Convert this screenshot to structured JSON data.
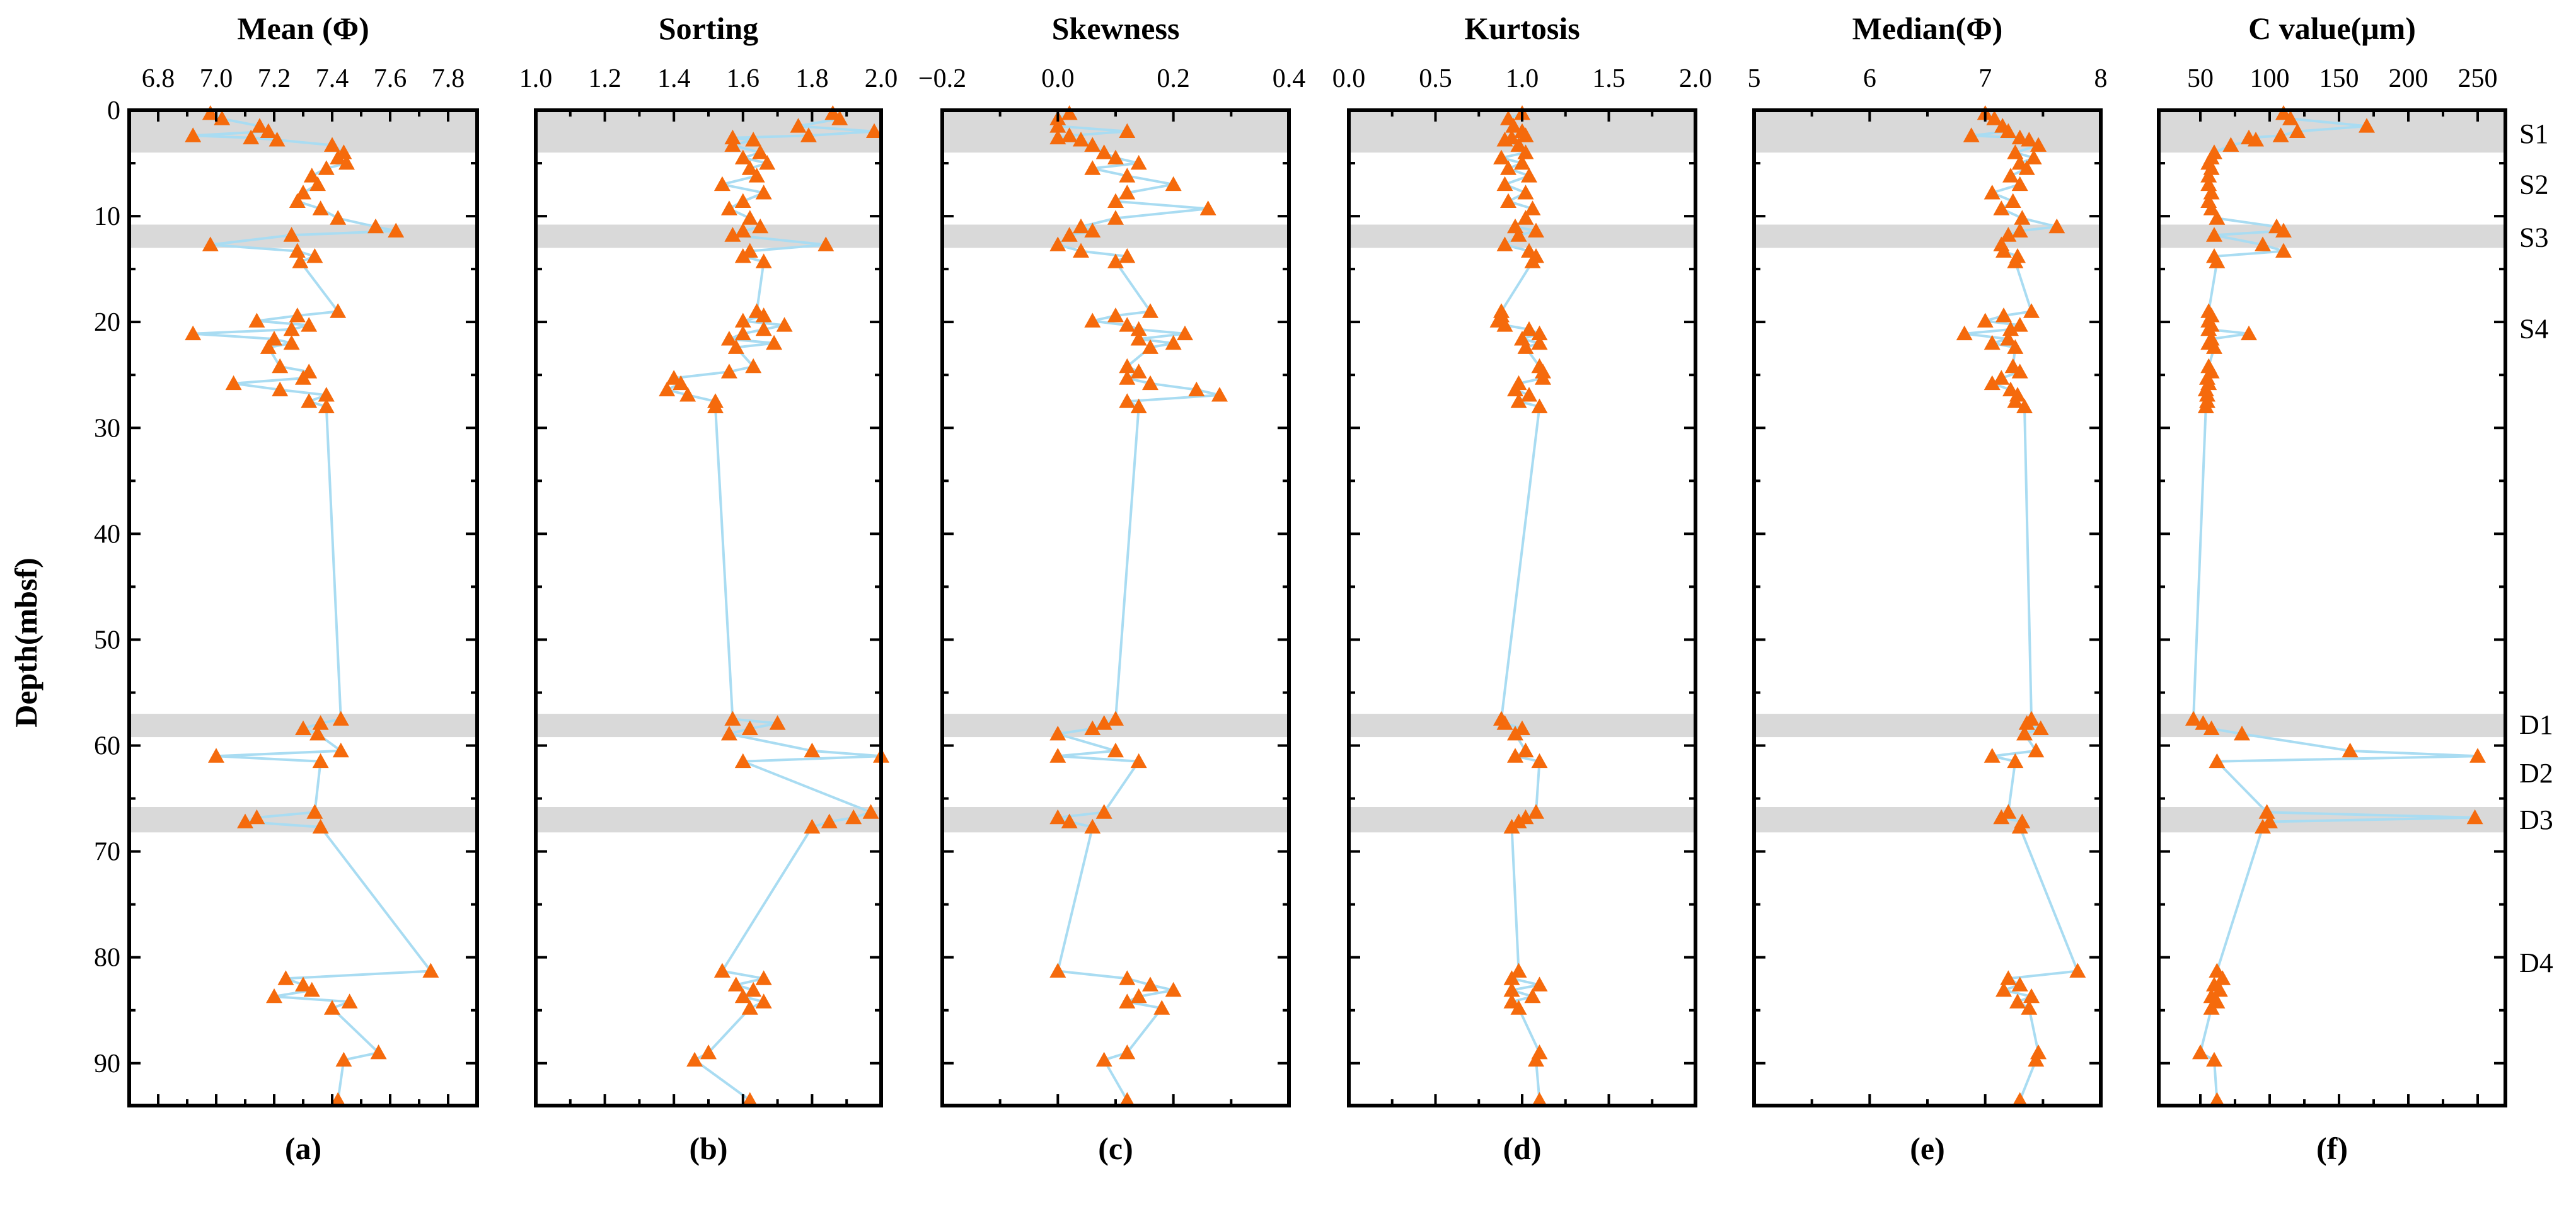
{
  "figure": {
    "y_axis_label": "Depth(mbsf)",
    "y_ticks": [
      0,
      10,
      20,
      30,
      40,
      50,
      60,
      70,
      80,
      90
    ],
    "ylim": [
      0,
      94
    ],
    "zones": [
      {
        "name": "S1",
        "label_depth": 2.2,
        "shade": [
          0,
          4
        ]
      },
      {
        "name": "S2",
        "label_depth": 7,
        "shade": null
      },
      {
        "name": "S3",
        "label_depth": 12,
        "shade": [
          10.8,
          13
        ]
      },
      {
        "name": "S4",
        "label_depth": 20.6,
        "shade": null
      },
      {
        "name": "D1",
        "label_depth": 58,
        "shade": [
          57,
          59.2
        ]
      },
      {
        "name": "D2",
        "label_depth": 62.6,
        "shade": null
      },
      {
        "name": "D3",
        "label_depth": 67,
        "shade": [
          65.8,
          68.2
        ]
      },
      {
        "name": "D4",
        "label_depth": 80.5,
        "shade": null
      }
    ],
    "colors": {
      "marker": "#f56a0c",
      "line": "#a9dcf2",
      "shade": "#d9d9d9"
    }
  },
  "chart_data": [
    {
      "type": "scatter",
      "panel": "(a)",
      "title": "Mean (Φ)",
      "xlim": [
        6.7,
        7.9
      ],
      "x_ticks": [
        "6.8",
        "7.0",
        "7.2",
        "7.4",
        "7.6",
        "7.8"
      ],
      "depth": [
        0.3,
        0.8,
        1.5,
        2.0,
        2.4,
        2.6,
        2.8,
        3.3,
        4.0,
        4.5,
        5.0,
        5.5,
        6.2,
        7.0,
        7.8,
        8.6,
        9.3,
        10.2,
        11.0,
        11.4,
        11.8,
        12.7,
        13.3,
        13.8,
        14.3,
        19.0,
        19.4,
        19.9,
        20.3,
        20.7,
        21.1,
        21.6,
        22.0,
        22.4,
        24.2,
        24.7,
        25.3,
        25.8,
        26.4,
        26.9,
        27.5,
        28.0,
        57.5,
        57.9,
        58.4,
        58.9,
        60.5,
        61.0,
        61.5,
        66.3,
        66.8,
        67.2,
        67.7,
        81.3,
        82.0,
        82.6,
        83.1,
        83.7,
        84.2,
        84.8,
        89.0,
        89.7,
        93.5
      ],
      "values": [
        6.98,
        7.02,
        7.15,
        7.18,
        6.92,
        7.12,
        7.21,
        7.4,
        7.44,
        7.42,
        7.45,
        7.38,
        7.33,
        7.35,
        7.3,
        7.28,
        7.36,
        7.42,
        7.55,
        7.62,
        7.26,
        6.98,
        7.28,
        7.34,
        7.29,
        7.42,
        7.28,
        7.14,
        7.32,
        7.26,
        6.92,
        7.2,
        7.26,
        7.18,
        7.22,
        7.32,
        7.3,
        7.06,
        7.22,
        7.38,
        7.32,
        7.38,
        7.43,
        7.36,
        7.3,
        7.35,
        7.43,
        7.0,
        7.36,
        7.34,
        7.14,
        7.1,
        7.36,
        7.74,
        7.24,
        7.3,
        7.33,
        7.2,
        7.46,
        7.4,
        7.56,
        7.44,
        7.42
      ]
    },
    {
      "type": "scatter",
      "panel": "(b)",
      "title": "Sorting",
      "xlim": [
        1.0,
        2.0
      ],
      "x_ticks": [
        "1.0",
        "1.2",
        "1.4",
        "1.6",
        "1.8",
        "2.0"
      ],
      "depth": [
        0.3,
        0.8,
        1.5,
        2.0,
        2.4,
        2.6,
        2.8,
        3.3,
        4.0,
        4.5,
        5.0,
        5.5,
        6.2,
        7.0,
        7.8,
        8.6,
        9.3,
        10.2,
        11.0,
        11.4,
        11.8,
        12.7,
        13.3,
        13.8,
        14.3,
        19.0,
        19.4,
        19.9,
        20.3,
        20.7,
        21.1,
        21.6,
        22.0,
        22.4,
        24.2,
        24.7,
        25.3,
        25.8,
        26.4,
        26.9,
        27.5,
        28.0,
        57.5,
        57.9,
        58.4,
        58.9,
        60.5,
        61.0,
        61.5,
        66.3,
        66.8,
        67.2,
        67.7,
        81.3,
        82.0,
        82.6,
        83.1,
        83.7,
        84.2,
        84.8,
        89.0,
        89.7,
        93.5
      ],
      "values": [
        1.86,
        1.88,
        1.76,
        1.98,
        1.79,
        1.57,
        1.63,
        1.57,
        1.65,
        1.6,
        1.67,
        1.62,
        1.64,
        1.54,
        1.66,
        1.6,
        1.56,
        1.62,
        1.65,
        1.6,
        1.57,
        1.84,
        1.62,
        1.6,
        1.66,
        1.64,
        1.66,
        1.6,
        1.72,
        1.66,
        1.6,
        1.56,
        1.69,
        1.58,
        1.63,
        1.56,
        1.4,
        1.42,
        1.38,
        1.44,
        1.52,
        1.52,
        1.57,
        1.7,
        1.62,
        1.56,
        1.8,
        2.0,
        1.6,
        1.97,
        1.92,
        1.85,
        1.8,
        1.54,
        1.66,
        1.58,
        1.63,
        1.6,
        1.66,
        1.62,
        1.5,
        1.46,
        1.62
      ]
    },
    {
      "type": "scatter",
      "panel": "(c)",
      "title": "Skewness",
      "xlim": [
        -0.2,
        0.4
      ],
      "x_ticks": [
        "−0.2",
        "0.0",
        "0.2",
        "0.4"
      ],
      "depth": [
        0.3,
        0.8,
        1.5,
        2.0,
        2.4,
        2.6,
        2.8,
        3.3,
        4.0,
        4.5,
        5.0,
        5.5,
        6.2,
        7.0,
        7.8,
        8.6,
        9.3,
        10.2,
        11.0,
        11.4,
        11.8,
        12.7,
        13.3,
        13.8,
        14.3,
        19.0,
        19.4,
        19.9,
        20.3,
        20.7,
        21.1,
        21.6,
        22.0,
        22.4,
        24.2,
        24.7,
        25.3,
        25.8,
        26.4,
        26.9,
        27.5,
        28.0,
        57.5,
        57.9,
        58.4,
        58.9,
        60.5,
        61.0,
        61.5,
        66.3,
        66.8,
        67.2,
        67.7,
        81.3,
        82.0,
        82.6,
        83.1,
        83.7,
        84.2,
        84.8,
        89.0,
        89.7,
        93.5
      ],
      "values": [
        0.02,
        0.0,
        0.0,
        0.12,
        0.02,
        0.0,
        0.04,
        0.06,
        0.08,
        0.1,
        0.14,
        0.06,
        0.12,
        0.2,
        0.12,
        0.1,
        0.26,
        0.1,
        0.04,
        0.06,
        0.02,
        0.0,
        0.04,
        0.12,
        0.1,
        0.16,
        0.1,
        0.06,
        0.12,
        0.14,
        0.22,
        0.14,
        0.2,
        0.16,
        0.12,
        0.14,
        0.12,
        0.16,
        0.24,
        0.28,
        0.12,
        0.14,
        0.1,
        0.08,
        0.06,
        0.0,
        0.1,
        0.0,
        0.14,
        0.08,
        0.0,
        0.02,
        0.06,
        0.0,
        0.12,
        0.16,
        0.2,
        0.14,
        0.12,
        0.18,
        0.12,
        0.08,
        0.12
      ]
    },
    {
      "type": "scatter",
      "panel": "(d)",
      "title": "Kurtosis",
      "xlim": [
        0.0,
        2.0
      ],
      "x_ticks": [
        "0.0",
        "0.5",
        "1.0",
        "1.5",
        "2.0"
      ],
      "depth": [
        0.3,
        0.8,
        1.5,
        2.0,
        2.4,
        2.6,
        2.8,
        3.3,
        4.0,
        4.5,
        5.0,
        5.5,
        6.2,
        7.0,
        7.8,
        8.6,
        9.3,
        10.2,
        11.0,
        11.4,
        11.8,
        12.7,
        13.3,
        13.8,
        14.3,
        19.0,
        19.4,
        19.9,
        20.3,
        20.7,
        21.1,
        21.6,
        22.0,
        22.4,
        24.2,
        24.7,
        25.3,
        25.8,
        26.4,
        26.9,
        27.5,
        28.0,
        57.5,
        57.9,
        58.4,
        58.9,
        60.5,
        61.0,
        61.5,
        66.3,
        66.8,
        67.2,
        67.7,
        81.3,
        82.0,
        82.6,
        83.1,
        83.7,
        84.2,
        84.8,
        89.0,
        89.7,
        93.5
      ],
      "values": [
        1.0,
        0.92,
        0.95,
        1.0,
        1.02,
        0.94,
        0.9,
        0.98,
        1.02,
        0.88,
        1.0,
        0.92,
        1.04,
        0.9,
        1.02,
        0.92,
        1.06,
        1.02,
        0.96,
        1.08,
        0.98,
        0.9,
        1.04,
        1.08,
        1.06,
        0.88,
        0.88,
        0.86,
        0.9,
        1.04,
        1.1,
        1.0,
        1.1,
        1.02,
        1.1,
        1.12,
        1.12,
        0.98,
        0.96,
        1.04,
        0.98,
        1.1,
        0.88,
        0.9,
        1.0,
        0.96,
        1.02,
        0.96,
        1.1,
        1.08,
        1.02,
        0.98,
        0.94,
        0.98,
        0.94,
        1.1,
        0.94,
        1.06,
        0.94,
        0.98,
        1.1,
        1.08,
        1.1
      ]
    },
    {
      "type": "scatter",
      "panel": "(e)",
      "title": "Median(Φ)",
      "xlim": [
        5,
        8
      ],
      "x_ticks": [
        "5",
        "6",
        "7",
        "8"
      ],
      "depth": [
        0.3,
        0.8,
        1.5,
        2.0,
        2.4,
        2.6,
        2.8,
        3.3,
        4.0,
        4.5,
        5.0,
        5.5,
        6.2,
        7.0,
        7.8,
        8.6,
        9.3,
        10.2,
        11.0,
        11.4,
        11.8,
        12.7,
        13.3,
        13.8,
        14.3,
        19.0,
        19.4,
        19.9,
        20.3,
        20.7,
        21.1,
        21.6,
        22.0,
        22.4,
        24.2,
        24.7,
        25.3,
        25.8,
        26.4,
        26.9,
        27.5,
        28.0,
        57.5,
        57.9,
        58.4,
        58.9,
        60.5,
        61.0,
        61.5,
        66.3,
        66.8,
        67.2,
        67.7,
        81.3,
        82.0,
        82.6,
        83.1,
        83.7,
        84.2,
        84.8,
        89.0,
        89.7,
        93.5
      ],
      "values": [
        7.0,
        7.08,
        7.15,
        7.2,
        6.88,
        7.3,
        7.38,
        7.46,
        7.26,
        7.42,
        7.3,
        7.36,
        7.22,
        7.3,
        7.06,
        7.24,
        7.14,
        7.32,
        7.62,
        7.3,
        7.2,
        7.14,
        7.16,
        7.28,
        7.26,
        7.4,
        7.16,
        7.0,
        7.3,
        7.22,
        6.82,
        7.2,
        7.06,
        7.26,
        7.24,
        7.3,
        7.14,
        7.06,
        7.22,
        7.28,
        7.26,
        7.34,
        7.4,
        7.36,
        7.48,
        7.34,
        7.44,
        7.06,
        7.26,
        7.2,
        7.14,
        7.32,
        7.3,
        7.8,
        7.2,
        7.3,
        7.16,
        7.4,
        7.28,
        7.38,
        7.46,
        7.44,
        7.3
      ]
    },
    {
      "type": "scatter",
      "panel": "(f)",
      "title": "C value(μm)",
      "xlim": [
        20,
        270
      ],
      "x_ticks": [
        "50",
        "100",
        "150",
        "200",
        "250"
      ],
      "depth": [
        0.3,
        0.8,
        1.5,
        2.0,
        2.4,
        2.6,
        2.8,
        3.3,
        4.0,
        4.5,
        5.0,
        5.5,
        6.2,
        7.0,
        7.8,
        8.6,
        9.3,
        10.2,
        11.0,
        11.4,
        11.8,
        12.7,
        13.3,
        13.8,
        14.3,
        19.0,
        19.4,
        19.9,
        20.3,
        20.7,
        21.1,
        21.6,
        22.0,
        22.4,
        24.2,
        24.7,
        25.3,
        25.8,
        26.4,
        26.9,
        27.5,
        28.0,
        57.5,
        57.9,
        58.4,
        58.9,
        60.5,
        61.0,
        61.5,
        66.3,
        66.8,
        67.2,
        67.7,
        81.3,
        82.0,
        82.6,
        83.1,
        83.7,
        84.2,
        84.8,
        89.0,
        89.7,
        93.5
      ],
      "values": [
        110,
        115,
        170,
        120,
        108,
        85,
        90,
        72,
        60,
        58,
        56,
        58,
        56,
        56,
        58,
        56,
        58,
        62,
        105,
        110,
        60,
        95,
        110,
        60,
        62,
        56,
        58,
        56,
        58,
        56,
        85,
        58,
        56,
        60,
        56,
        58,
        55,
        56,
        54,
        55,
        55,
        54,
        45,
        52,
        58,
        80,
        158,
        250,
        62,
        98,
        248,
        100,
        95,
        62,
        66,
        60,
        64,
        58,
        62,
        58,
        50,
        60,
        62
      ]
    }
  ]
}
